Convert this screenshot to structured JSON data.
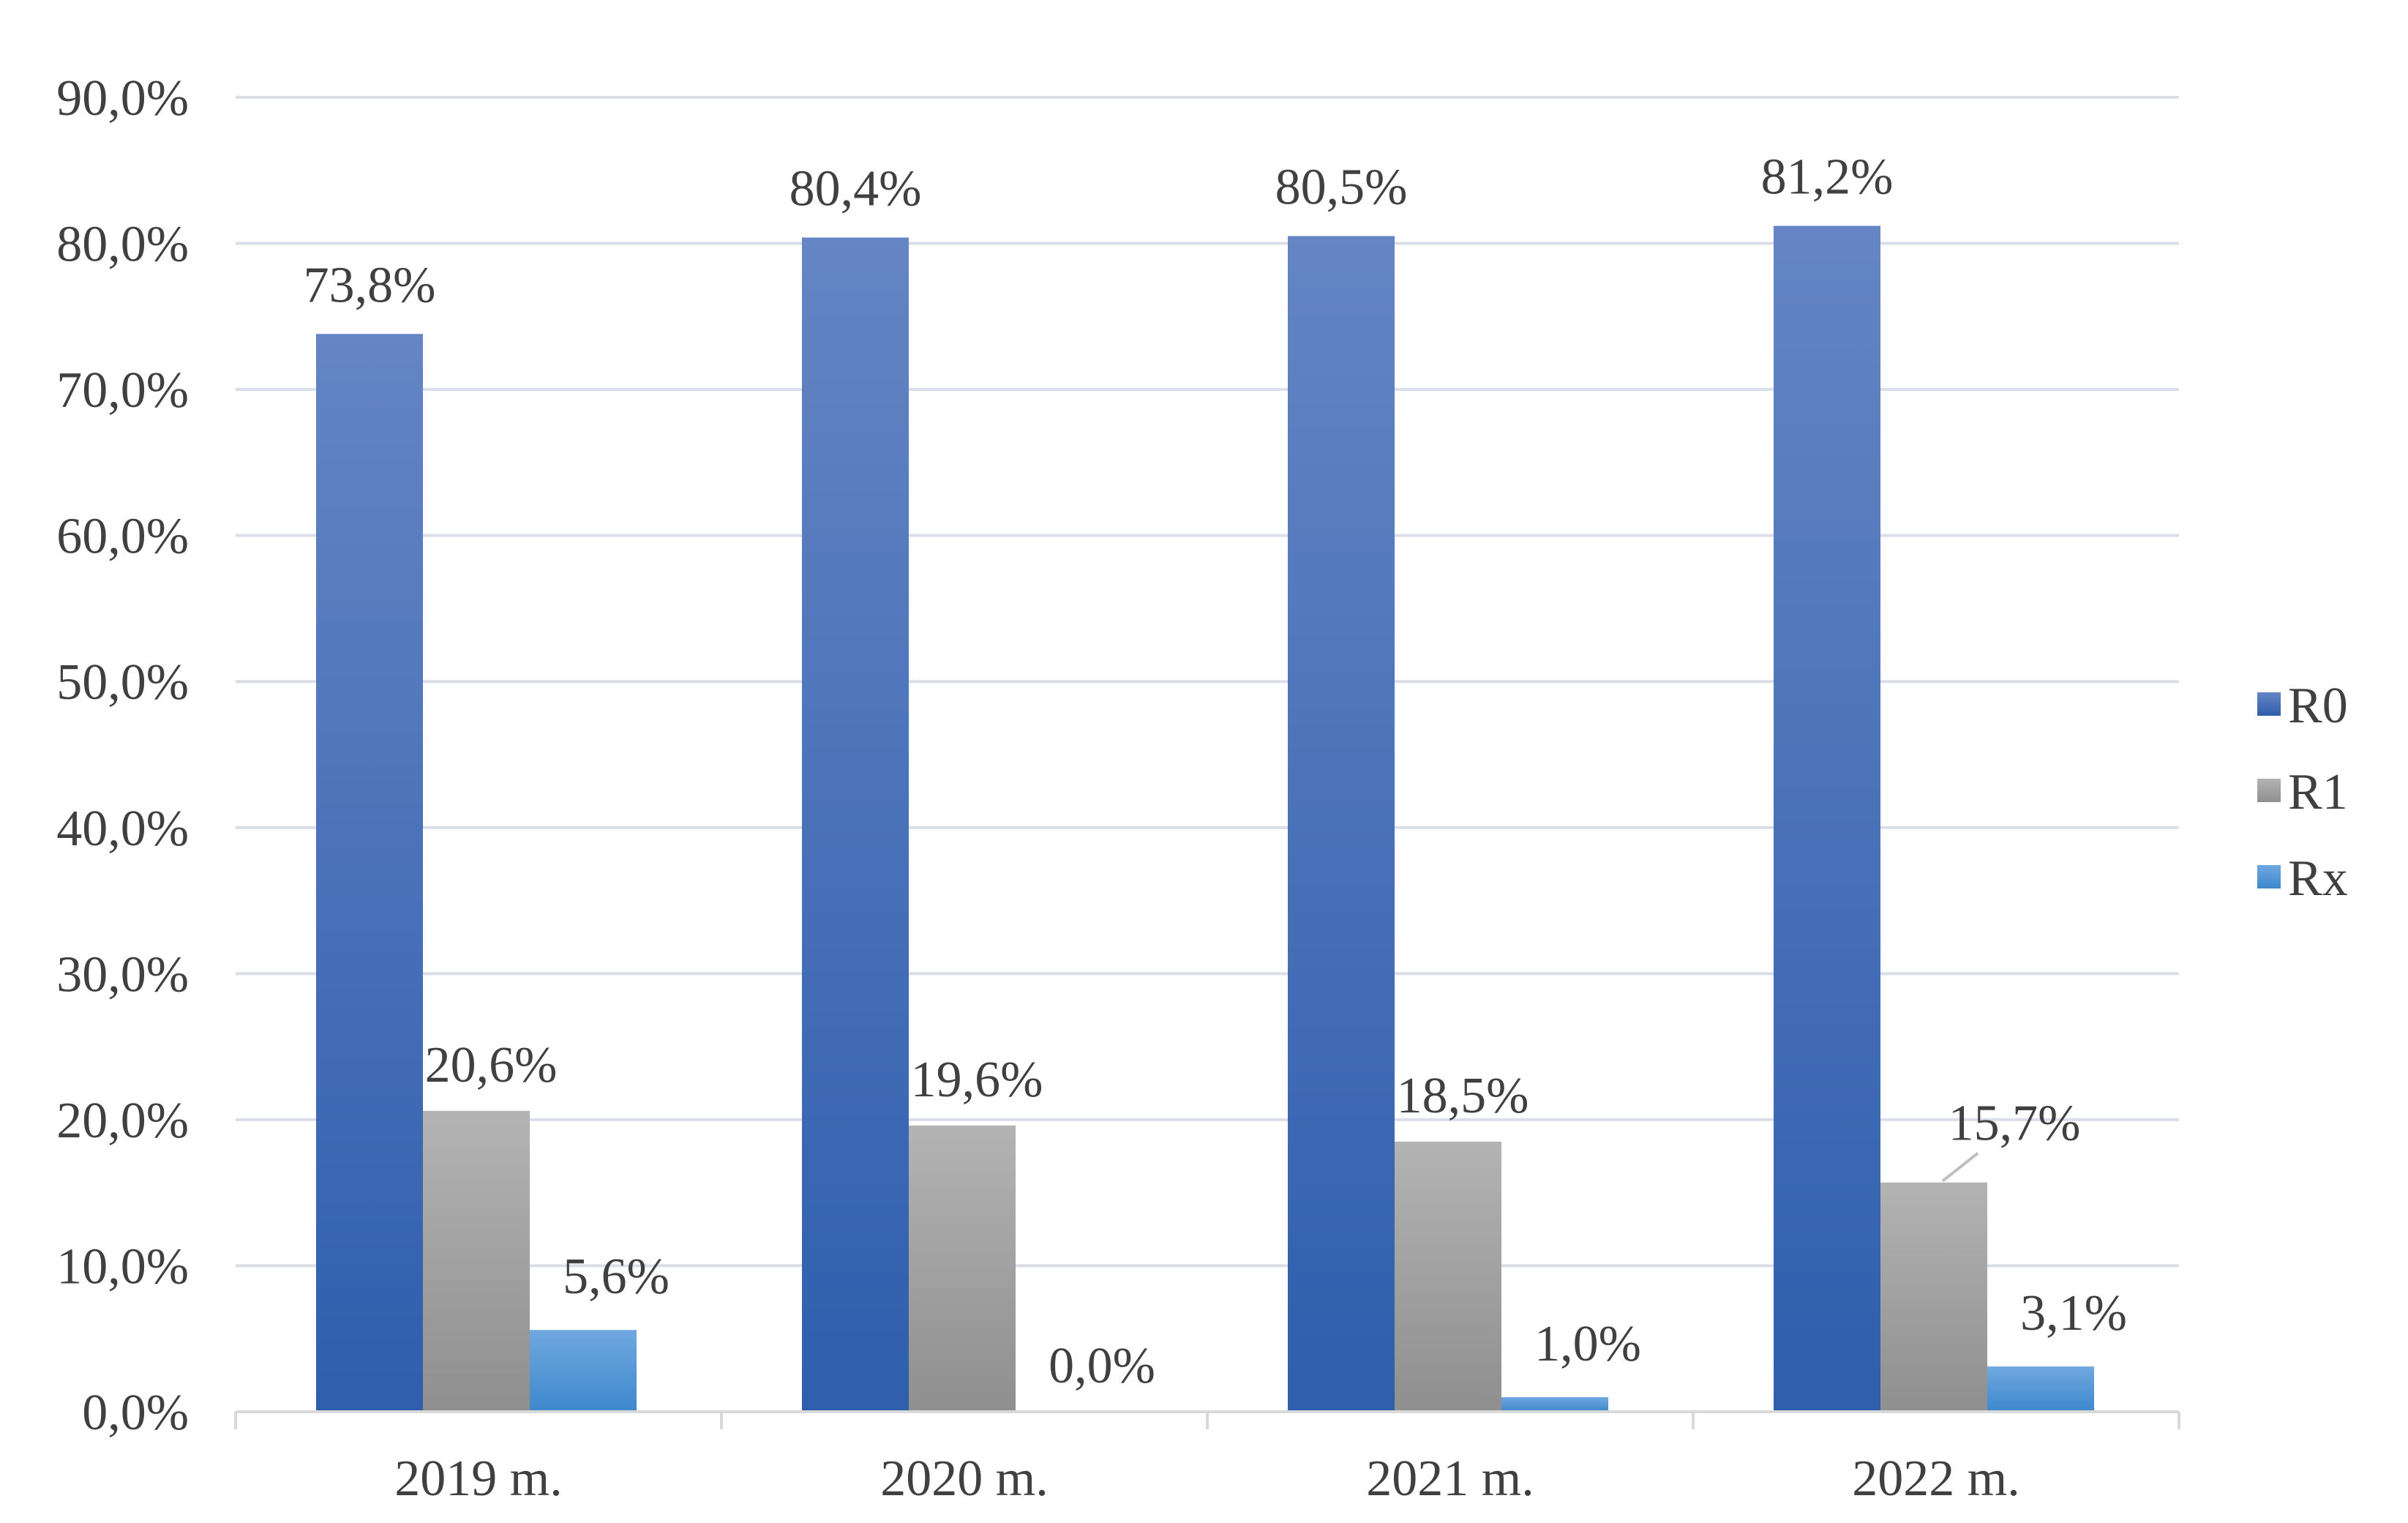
{
  "chart_data": {
    "type": "bar",
    "title": "",
    "xlabel": "",
    "ylabel": "",
    "categories": [
      "2019 m.",
      "2020 m.",
      "2021 m.",
      "2022 m."
    ],
    "series": [
      {
        "name": "R0",
        "values": [
          73.8,
          80.4,
          80.5,
          81.2
        ],
        "labels": [
          "73,8%",
          "80,4%",
          "80,5%",
          "81,2%"
        ],
        "color": "#4472c4"
      },
      {
        "name": "R1",
        "values": [
          20.6,
          19.6,
          18.5,
          15.7
        ],
        "labels": [
          "20,6%",
          "19,6%",
          "18,5%",
          "15,7%"
        ],
        "color": "#a5a5a5"
      },
      {
        "name": "Rx",
        "values": [
          5.6,
          0.0,
          1.0,
          3.1
        ],
        "labels": [
          "5,6%",
          "0,0%",
          "1,0%",
          "3,1%"
        ],
        "color": "#5b9bd5"
      }
    ],
    "ylim": [
      0,
      90
    ],
    "yticks": [
      0,
      10,
      20,
      30,
      40,
      50,
      60,
      70,
      80,
      90
    ],
    "ytick_labels": [
      "0,0%",
      "10,0%",
      "20,0%",
      "30,0%",
      "40,0%",
      "50,0%",
      "60,0%",
      "70,0%",
      "80,0%",
      "90,0%"
    ],
    "grid": true,
    "legend_position": "right"
  },
  "colors": {
    "grid": "#d9dee8",
    "axis": "#d9d9d9",
    "text": "#404040"
  }
}
